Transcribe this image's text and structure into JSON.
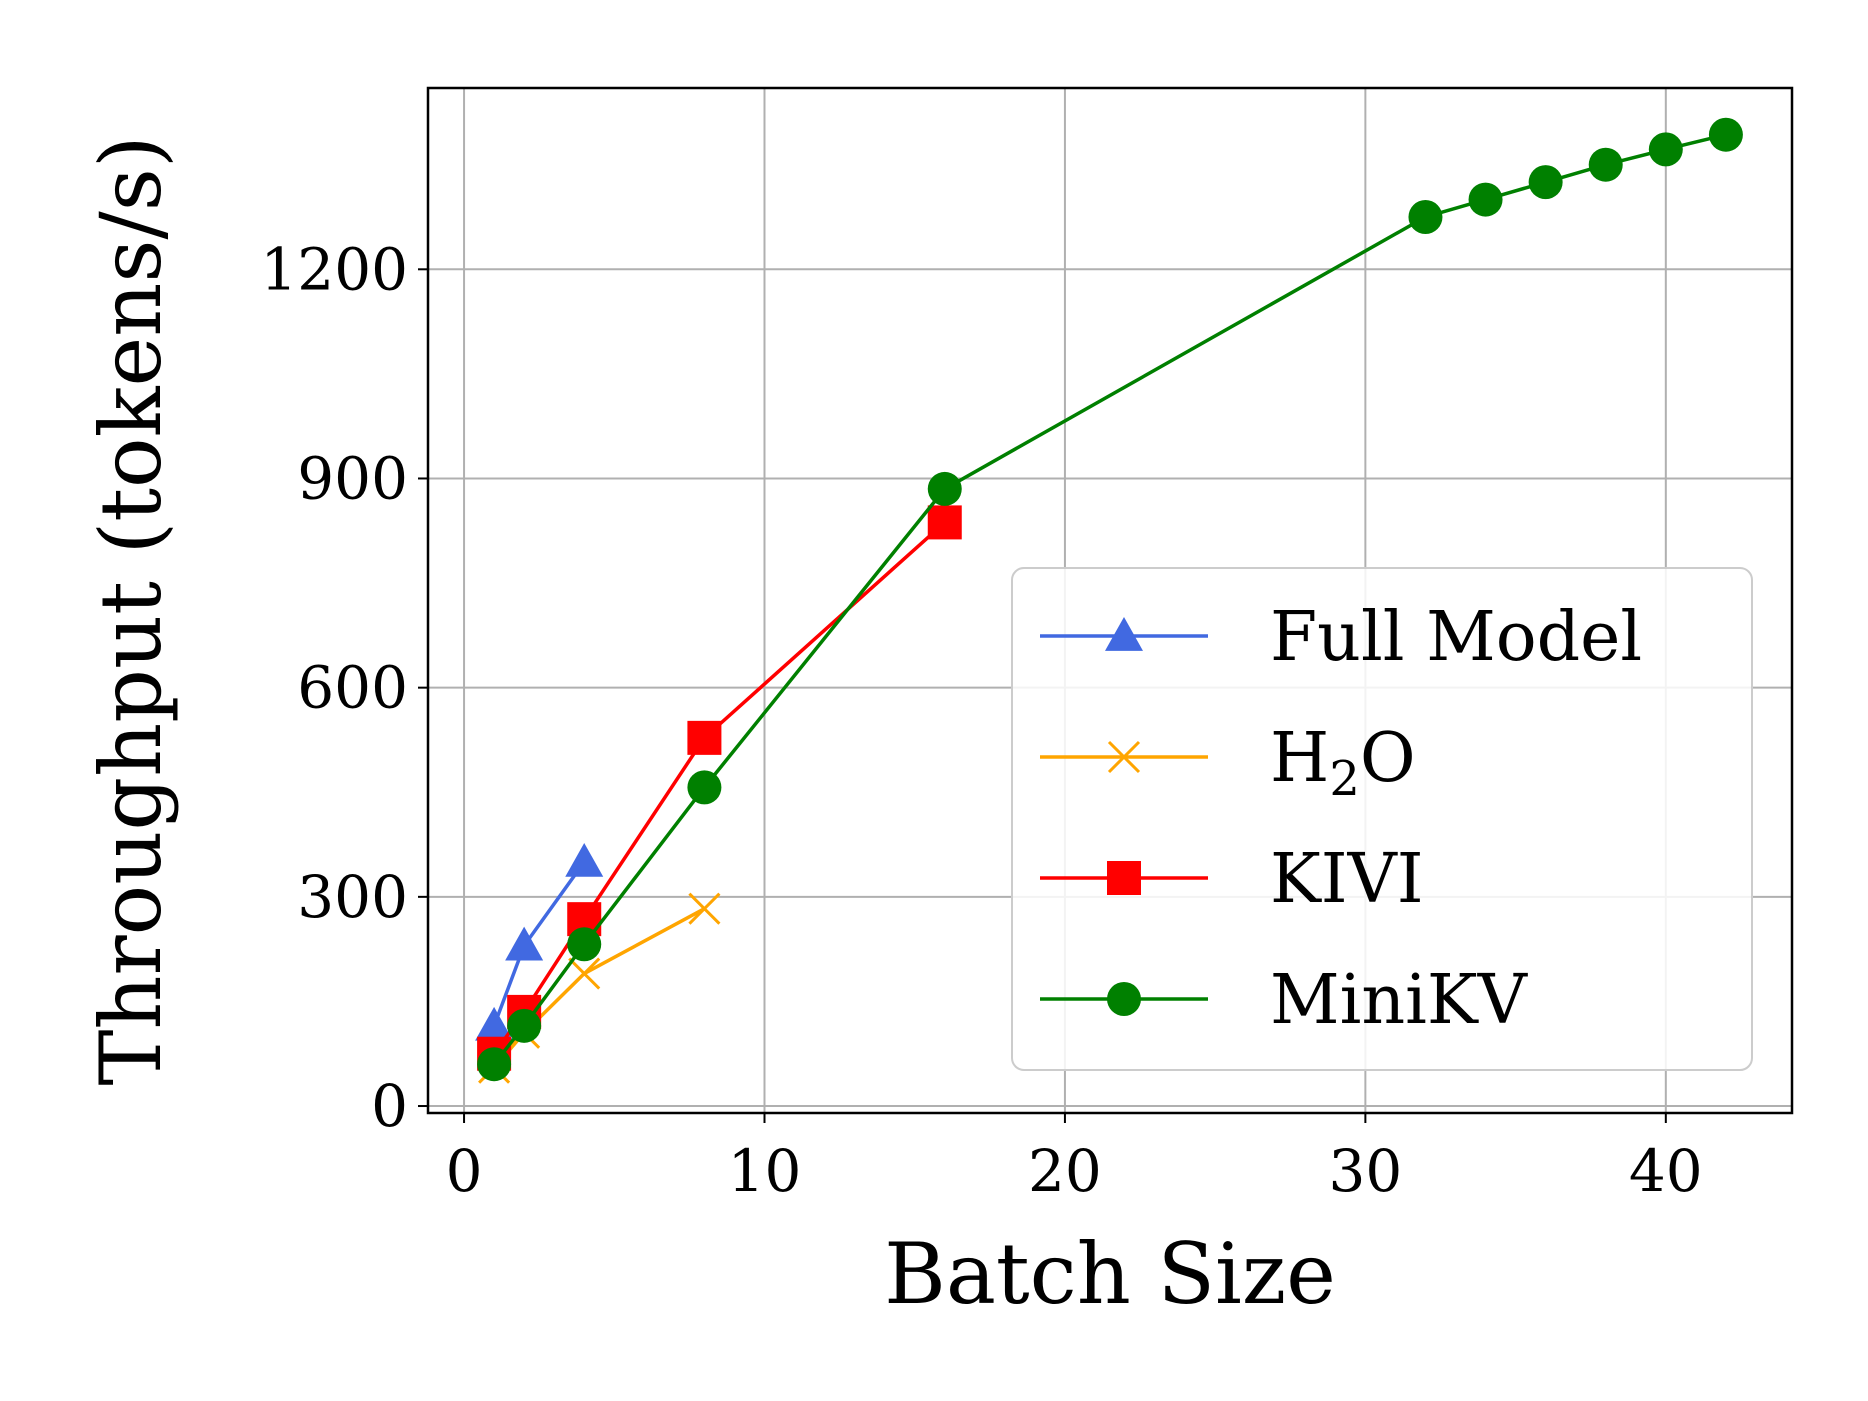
{
  "chart_data": {
    "type": "line",
    "title": "",
    "xlabel": "Batch Size",
    "ylabel": "Throughput (tokens/s)",
    "xlim": [
      -1.2,
      44.2
    ],
    "ylim": [
      -10,
      1460
    ],
    "xticks": [
      0,
      10,
      20,
      30,
      40
    ],
    "yticks": [
      0,
      300,
      600,
      900,
      1200
    ],
    "xtick_labels": [
      "0",
      "10",
      "20",
      "30",
      "40"
    ],
    "ytick_labels": [
      "0",
      "300",
      "600",
      "900",
      "1200"
    ],
    "grid": true,
    "legend_position": "center-right",
    "series": [
      {
        "name": "Full Model",
        "legend_main": "Full Model",
        "legend_sub": "",
        "legend_tail": "",
        "color": "#4169e1",
        "marker": "triangle",
        "x": [
          1,
          2,
          4
        ],
        "y": [
          115,
          230,
          350
        ]
      },
      {
        "name": "H2O",
        "legend_main": "H",
        "legend_sub": "2",
        "legend_tail": "O",
        "color": "#ffa500",
        "marker": "x",
        "x": [
          1,
          2,
          4,
          8
        ],
        "y": [
          55,
          105,
          190,
          283
        ]
      },
      {
        "name": "KIVI",
        "legend_main": "KIVI",
        "legend_sub": "",
        "legend_tail": "",
        "color": "#ff0000",
        "marker": "square",
        "x": [
          1,
          2,
          4,
          8,
          16
        ],
        "y": [
          75,
          135,
          268,
          528,
          837
        ]
      },
      {
        "name": "MiniKV",
        "legend_main": "MiniKV",
        "legend_sub": "",
        "legend_tail": "",
        "color": "#008000",
        "marker": "circle",
        "x": [
          1,
          2,
          4,
          8,
          16,
          32,
          34,
          36,
          38,
          40,
          42
        ],
        "y": [
          60,
          115,
          232,
          457,
          885,
          1275,
          1300,
          1325,
          1350,
          1372,
          1393
        ]
      }
    ]
  }
}
